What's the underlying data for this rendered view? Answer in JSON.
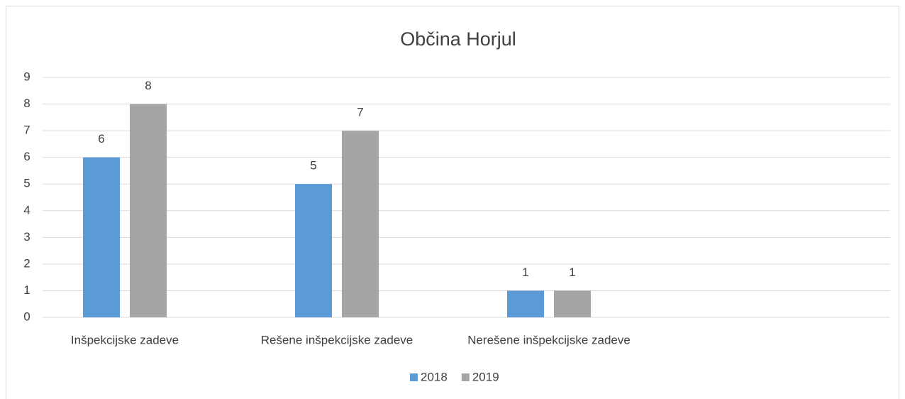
{
  "chart_data": {
    "type": "bar",
    "title": "Občina Horjul",
    "categories": [
      "Inšpekcijske zadeve",
      "Rešene inšpekcijske zadeve",
      "Nerešene inšpekcijske zadeve",
      null
    ],
    "series": [
      {
        "name": "2018",
        "color": "#5b9bd5",
        "values": [
          6,
          5,
          1,
          null
        ]
      },
      {
        "name": "2019",
        "color": "#a5a5a5",
        "values": [
          8,
          7,
          1,
          null
        ]
      }
    ],
    "ylim": [
      0,
      9
    ],
    "yticks": [
      0,
      1,
      2,
      3,
      4,
      5,
      6,
      7,
      8,
      9
    ],
    "grid": true,
    "legend": "bottom",
    "data_labels": true
  }
}
